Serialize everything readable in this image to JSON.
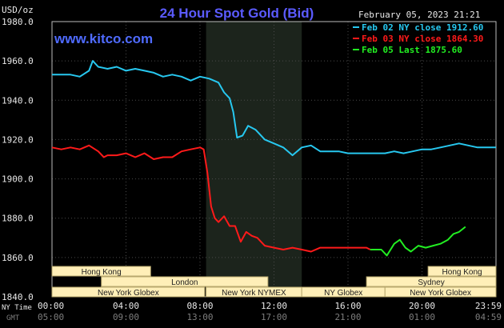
{
  "chart_data": {
    "type": "line",
    "title": "24 Hour Spot Gold (Bid)",
    "website": "www.kitco.com",
    "timestamp": "February 05, 2023 21:21",
    "ylabel": "USD/oz",
    "ylim": [
      1840,
      1980
    ],
    "yticks": [
      "1980.0",
      "1960.0",
      "1940.0",
      "1920.0",
      "1900.0",
      "1880.0",
      "1860.0",
      "1840.0"
    ],
    "ytick_values": [
      1980,
      1960,
      1940,
      1920,
      1900,
      1880,
      1860,
      1840
    ],
    "grid": true,
    "x_axis_label_primary": "NY Time",
    "x_axis_label_secondary": "GMT",
    "xticks_ny": [
      "00:00",
      "04:00",
      "08:00",
      "12:00",
      "16:00",
      "20:00",
      "23:59"
    ],
    "xticks_gmt": [
      "05:00",
      "09:00",
      "13:00",
      "17:00",
      "21:00",
      "01:00",
      "04:59"
    ],
    "xtick_hours": [
      0,
      4,
      8,
      12,
      16,
      20,
      24
    ],
    "xlim_hours": [
      0,
      24
    ],
    "nymex_shade_hours": [
      8.33,
      13.5
    ],
    "legend_placement": "top-right",
    "series": [
      {
        "name": "Feb 02 NY close 1912.60",
        "color": "#27c8f0",
        "x": [
          0,
          0.5,
          1,
          1.5,
          2,
          2.2,
          2.5,
          3,
          3.5,
          4,
          4.5,
          5,
          5.5,
          6,
          6.5,
          7,
          7.5,
          8,
          8.5,
          9,
          9.3,
          9.6,
          9.8,
          10,
          10.3,
          10.6,
          11,
          11.5,
          12,
          12.5,
          13,
          13.5,
          14,
          14.5,
          15,
          15.5,
          16,
          16.5,
          17,
          18,
          18.5,
          19,
          19.5,
          20,
          20.5,
          21,
          21.5,
          22,
          22.5,
          23,
          23.5,
          24
        ],
        "values": [
          1953,
          1953,
          1953,
          1952,
          1955,
          1960,
          1957,
          1956,
          1957,
          1955,
          1956,
          1955,
          1954,
          1952,
          1953,
          1952,
          1950,
          1952,
          1951,
          1949,
          1944,
          1941,
          1934,
          1921,
          1922,
          1927,
          1925,
          1920,
          1918,
          1916,
          1912,
          1916,
          1917,
          1914,
          1914,
          1914,
          1913,
          1913,
          1913,
          1913,
          1914,
          1913,
          1914,
          1915,
          1915,
          1916,
          1917,
          1918,
          1917,
          1916,
          1916,
          1916
        ]
      },
      {
        "name": "Feb 03 NY close 1864.30",
        "color": "#ff1a1a",
        "x": [
          0,
          0.5,
          1,
          1.5,
          2,
          2.5,
          2.8,
          3,
          3.5,
          4,
          4.5,
          5,
          5.5,
          6,
          6.5,
          7,
          7.5,
          8,
          8.2,
          8.4,
          8.6,
          8.8,
          9,
          9.3,
          9.6,
          9.9,
          10.2,
          10.5,
          10.8,
          11.1,
          11.5,
          12,
          12.5,
          13,
          13.5,
          14,
          14.5,
          15,
          15.5,
          16,
          16.5,
          17,
          17.2
        ],
        "values": [
          1916,
          1915,
          1916,
          1915,
          1917,
          1914,
          1911,
          1912,
          1912,
          1913,
          1911,
          1913,
          1910,
          1911,
          1911,
          1914,
          1915,
          1916,
          1915,
          1903,
          1886,
          1880,
          1878,
          1881,
          1876,
          1876,
          1868,
          1873,
          1871,
          1870,
          1866,
          1865,
          1864,
          1865,
          1864,
          1863,
          1865,
          1865,
          1865,
          1865,
          1865,
          1865,
          1864
        ]
      },
      {
        "name": "Feb 05 Last 1875.60",
        "color": "#22ee22",
        "x": [
          17.2,
          17.8,
          18.1,
          18.5,
          18.8,
          19.1,
          19.4,
          19.8,
          20.2,
          20.6,
          21,
          21.4,
          21.7,
          22.0,
          22.35
        ],
        "values": [
          1864,
          1864,
          1861,
          1867,
          1869,
          1865,
          1863,
          1866,
          1865,
          1866,
          1867,
          1869,
          1872,
          1873,
          1875.6
        ]
      }
    ],
    "sessions": [
      {
        "name": "Hong Kong",
        "start": 0,
        "end": 5.33,
        "row": 0
      },
      {
        "name": "Hong Kong",
        "start": 20.33,
        "end": 24,
        "row": 0
      },
      {
        "name": "London",
        "start": 2.67,
        "end": 11.67,
        "row": 1
      },
      {
        "name": "Sydney",
        "start": 17,
        "end": 24,
        "row": 1
      },
      {
        "name": "New York Globex",
        "start": 0,
        "end": 8.25,
        "row": 2
      },
      {
        "name": "New York NYMEX",
        "start": 8.33,
        "end": 13.5,
        "row": 2
      },
      {
        "name": "NY Globex",
        "start": 13.5,
        "end": 18,
        "row": 2
      },
      {
        "name": "New York Globex",
        "start": 18,
        "end": 24,
        "row": 2
      }
    ]
  }
}
